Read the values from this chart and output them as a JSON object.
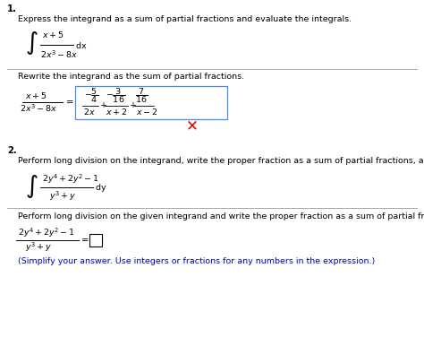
{
  "bg_color": "#ffffff",
  "black": "#000000",
  "blue": "#0000cc",
  "red": "#dd0000",
  "p1_num": "1.",
  "p1_desc": "Express the integrand as a sum of partial fractions and evaluate the integrals.",
  "rewrite_label": "Rewrite the integrand as the sum of partial fractions.",
  "p2_num": "2.",
  "p2_desc": "Perform long division on the integrand, write the proper fraction as a sum of partial fractions, and then evaluate the integral.",
  "perform_label": "Perform long division on the given integrand and write the proper fraction as a sum of partial fractions.",
  "simplify": "(Simplify your answer. Use integers or fractions for any numbers in the expression.)"
}
